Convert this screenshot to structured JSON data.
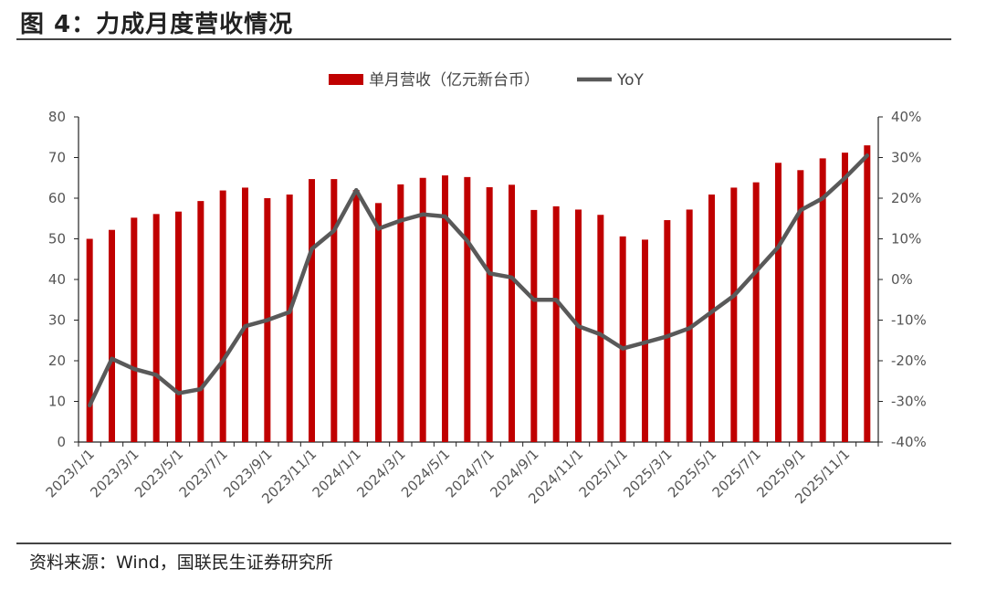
{
  "header": {
    "title": "图 4：力成月度营收情况"
  },
  "footer": {
    "source": "资料来源：Wind，国联民生证券研究所"
  },
  "chart_data": {
    "type": "bar+line",
    "categories": [
      "2023/1/1",
      "2023/2/1",
      "2023/3/1",
      "2023/4/1",
      "2023/5/1",
      "2023/6/1",
      "2023/7/1",
      "2023/8/1",
      "2023/9/1",
      "2023/10/1",
      "2023/11/1",
      "2023/12/1",
      "2024/1/1",
      "2024/2/1",
      "2024/3/1",
      "2024/4/1",
      "2024/5/1",
      "2024/6/1",
      "2024/7/1",
      "2024/8/1",
      "2024/9/1",
      "2024/10/1",
      "2024/11/1",
      "2024/12/1",
      "2025/1/1",
      "2025/2/1",
      "2025/3/1",
      "2025/4/1",
      "2025/5/1",
      "2025/6/1",
      "2025/7/1",
      "2025/8/1",
      "2025/9/1",
      "2025/10/1",
      "2025/11/1",
      "2025/12/1"
    ],
    "x_tick_labels": [
      "2023/1/1",
      "2023/3/1",
      "2023/5/1",
      "2023/7/1",
      "2023/9/1",
      "2023/11/1",
      "2024/1/1",
      "2024/3/1",
      "2024/5/1",
      "2024/7/1",
      "2024/9/1",
      "2024/11/1",
      "2025/1/1",
      "2025/3/1",
      "2025/5/1",
      "2025/7/1",
      "2025/9/1",
      "2025/11/1"
    ],
    "series": [
      {
        "name": "单月营收（亿元新台币）",
        "type": "bar",
        "axis": "left",
        "color": "#c00000",
        "values": [
          50.0,
          52.2,
          55.2,
          56.1,
          56.7,
          59.3,
          61.9,
          62.6,
          60.0,
          60.9,
          64.7,
          64.7,
          62.0,
          58.8,
          63.4,
          65.0,
          65.6,
          65.2,
          62.7,
          63.3,
          57.1,
          58.0,
          57.2,
          55.9,
          50.6,
          49.8,
          54.6,
          57.2,
          60.9,
          62.6,
          63.9,
          68.7,
          66.9,
          69.8,
          71.2,
          73.0
        ]
      },
      {
        "name": "YoY",
        "type": "line",
        "axis": "right",
        "color": "#595959",
        "values": [
          -31,
          -19.5,
          -22,
          -23.5,
          -28,
          -27,
          -20,
          -11.5,
          -10,
          -8,
          7.5,
          12,
          22,
          12.5,
          14.5,
          16,
          15.5,
          9.5,
          1.5,
          0.5,
          -5,
          -5,
          -11.5,
          -13.5,
          -17,
          -15.5,
          -14,
          -12,
          -8,
          -4,
          2,
          8,
          17,
          20,
          25,
          30.5
        ]
      }
    ],
    "y_left": {
      "min": 0,
      "max": 80,
      "ticks": [
        0,
        10,
        20,
        30,
        40,
        50,
        60,
        70,
        80
      ]
    },
    "y_right": {
      "min": -40,
      "max": 40,
      "tick_labels": [
        "-40%",
        "-30%",
        "-20%",
        "-10%",
        "0%",
        "10%",
        "20%",
        "30%",
        "40%"
      ]
    },
    "legend": "top-center",
    "grid": false
  }
}
